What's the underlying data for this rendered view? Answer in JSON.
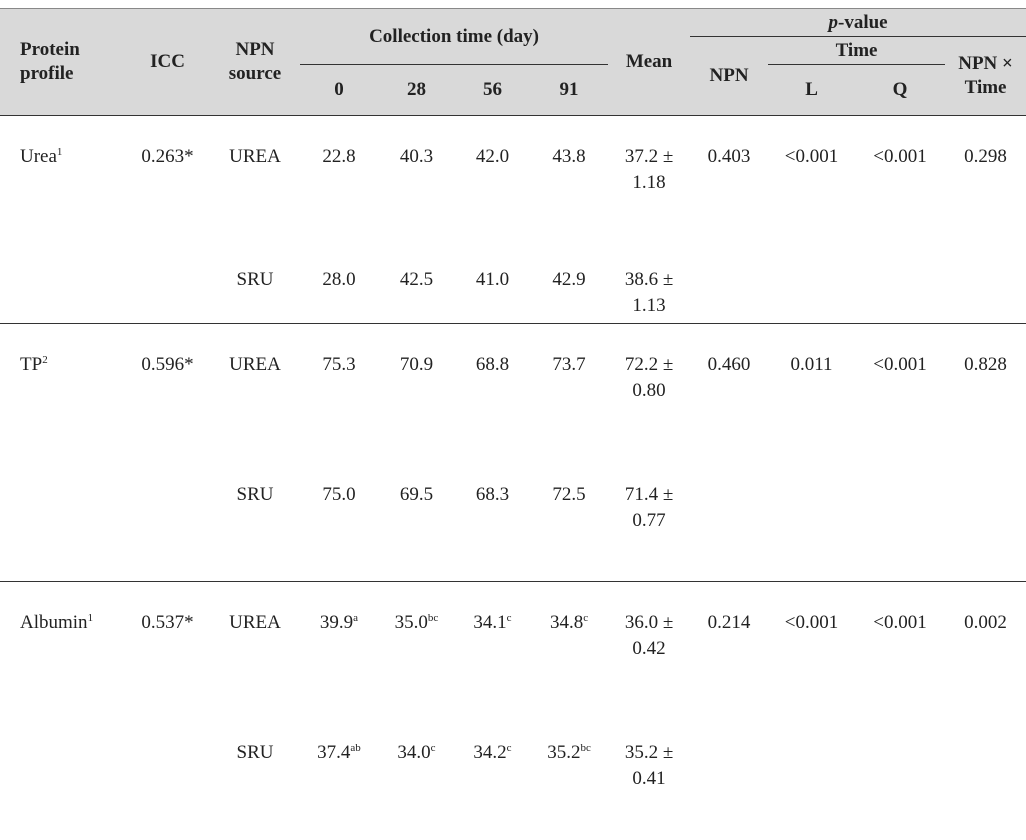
{
  "table": {
    "header": {
      "protein_profile": "Protein profile",
      "icc": "ICC",
      "npn_source": "NPN source",
      "collection_time": "Collection time (day)",
      "days": [
        "0",
        "28",
        "56",
        "91"
      ],
      "mean": "Mean",
      "p_value": {
        "italic": "p",
        "rest": "-value"
      },
      "npn": "NPN",
      "time": "Time",
      "l": "L",
      "q": "Q",
      "npn_x_time": "NPN × Time"
    },
    "groups": [
      {
        "profile": "Urea",
        "profile_sup": "1",
        "icc": "0.263*",
        "p_values": [
          "0.403",
          "<0.001",
          "<0.001",
          "0.298"
        ],
        "rows": [
          {
            "source": "UREA",
            "values": [
              {
                "text": "22.8"
              },
              {
                "text": "40.3"
              },
              {
                "text": "42.0"
              },
              {
                "text": "43.8"
              }
            ],
            "mean": "37.2 ± 1.18"
          },
          {
            "source": "SRU",
            "values": [
              {
                "text": "28.0"
              },
              {
                "text": "42.5"
              },
              {
                "text": "41.0"
              },
              {
                "text": "42.9"
              }
            ],
            "mean": "38.6 ± 1.13"
          }
        ]
      },
      {
        "profile": "TP",
        "profile_sup": "2",
        "icc": "0.596*",
        "p_values": [
          "0.460",
          "0.011",
          "<0.001",
          "0.828"
        ],
        "rows": [
          {
            "source": "UREA",
            "values": [
              {
                "text": "75.3"
              },
              {
                "text": "70.9"
              },
              {
                "text": "68.8"
              },
              {
                "text": "73.7"
              }
            ],
            "mean": "72.2 ± 0.80"
          },
          {
            "source": "SRU",
            "values": [
              {
                "text": "75.0"
              },
              {
                "text": "69.5"
              },
              {
                "text": "68.3"
              },
              {
                "text": "72.5"
              }
            ],
            "mean": "71.4 ± 0.77"
          }
        ]
      },
      {
        "profile": "Albumin",
        "profile_sup": "1",
        "icc": "0.537*",
        "p_values": [
          "0.214",
          "<0.001",
          "<0.001",
          "0.002"
        ],
        "rows": [
          {
            "source": "UREA",
            "values": [
              {
                "text": "39.9",
                "sup": "a"
              },
              {
                "text": "35.0",
                "sup": "bc"
              },
              {
                "text": "34.1",
                "sup": "c"
              },
              {
                "text": "34.8",
                "sup": "c"
              }
            ],
            "mean": "36.0 ± 0.42"
          },
          {
            "source": "SRU",
            "values": [
              {
                "text": "37.4",
                "sup": "ab"
              },
              {
                "text": "34.0",
                "sup": "c"
              },
              {
                "text": "34.2",
                "sup": "c"
              },
              {
                "text": "35.2",
                "sup": "bc"
              }
            ],
            "mean": "35.2 ± 0.41"
          }
        ]
      }
    ]
  }
}
